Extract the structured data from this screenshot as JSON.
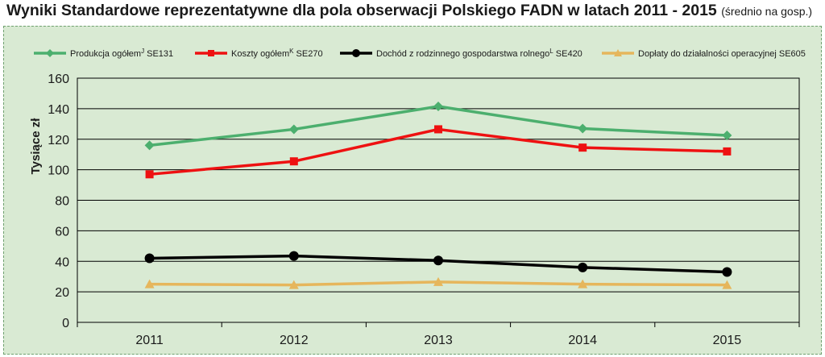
{
  "header": {
    "title": "Wyniki Standardowe reprezentatywne dla pola obserwacji Polskiego FADN w latach 2011 - 2015",
    "subtitle": "(średnio na gosp.)"
  },
  "chart_data": {
    "type": "line",
    "x": [
      "2011",
      "2012",
      "2013",
      "2014",
      "2015"
    ],
    "ylabel": "Tysiące zł",
    "ylim": [
      0,
      160
    ],
    "yticks": [
      0,
      20,
      40,
      60,
      80,
      100,
      120,
      140,
      160
    ],
    "grid": "horizontal",
    "legend_position": "top",
    "series": [
      {
        "name": "Produkcja ogółem",
        "sup": "J",
        "code": " SE131",
        "color": "#4caf6e",
        "marker": "diamond",
        "values": [
          116,
          126.5,
          141.5,
          127,
          122.5
        ]
      },
      {
        "name": "Koszty ogółem",
        "sup": "K",
        "code": " SE270",
        "color": "#ee1111",
        "marker": "square",
        "values": [
          97,
          105.5,
          126.5,
          114.5,
          112
        ]
      },
      {
        "name": "Dochód z rodzinnego gospodarstwa rolnego",
        "sup": "L",
        "code": " SE420",
        "color": "#000000",
        "marker": "circle",
        "values": [
          42,
          43.5,
          40.5,
          36,
          33
        ]
      },
      {
        "name": "Dopłaty do działalności operacyjnej SE605",
        "sup": "",
        "code": "",
        "color": "#e6b65c",
        "marker": "triangle",
        "values": [
          25,
          24.5,
          26.5,
          25,
          24.5
        ]
      }
    ]
  }
}
